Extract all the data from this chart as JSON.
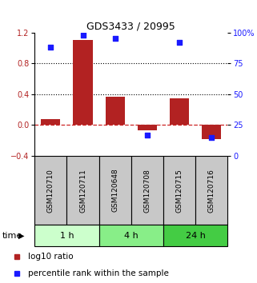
{
  "title": "GDS3433 / 20995",
  "categories": [
    "GSM120710",
    "GSM120711",
    "GSM120648",
    "GSM120708",
    "GSM120715",
    "GSM120716"
  ],
  "log10_ratio": [
    0.08,
    1.1,
    0.37,
    -0.07,
    0.35,
    -0.18
  ],
  "percentile_rank": [
    88,
    98,
    95,
    17,
    92,
    15
  ],
  "bar_color": "#b22222",
  "dot_color": "#1a1aff",
  "left_ylim": [
    -0.4,
    1.2
  ],
  "right_ylim": [
    0,
    100
  ],
  "left_yticks": [
    -0.4,
    0.0,
    0.4,
    0.8,
    1.2
  ],
  "right_yticks": [
    0,
    25,
    50,
    75,
    100
  ],
  "right_yticklabels": [
    "0",
    "25",
    "50",
    "75",
    "100%"
  ],
  "hlines": [
    0.4,
    0.8
  ],
  "hline_zero_color": "#cc2222",
  "groups": [
    {
      "label": "1 h",
      "span": [
        0,
        2
      ],
      "color": "#ccffcc"
    },
    {
      "label": "4 h",
      "span": [
        2,
        4
      ],
      "color": "#88ee88"
    },
    {
      "label": "24 h",
      "span": [
        4,
        6
      ],
      "color": "#44cc44"
    }
  ],
  "time_label": "time",
  "legend_red_label": "log10 ratio",
  "legend_blue_label": "percentile rank within the sample",
  "bar_width": 0.6,
  "fig_width": 3.21,
  "fig_height": 3.54,
  "dpi": 100
}
